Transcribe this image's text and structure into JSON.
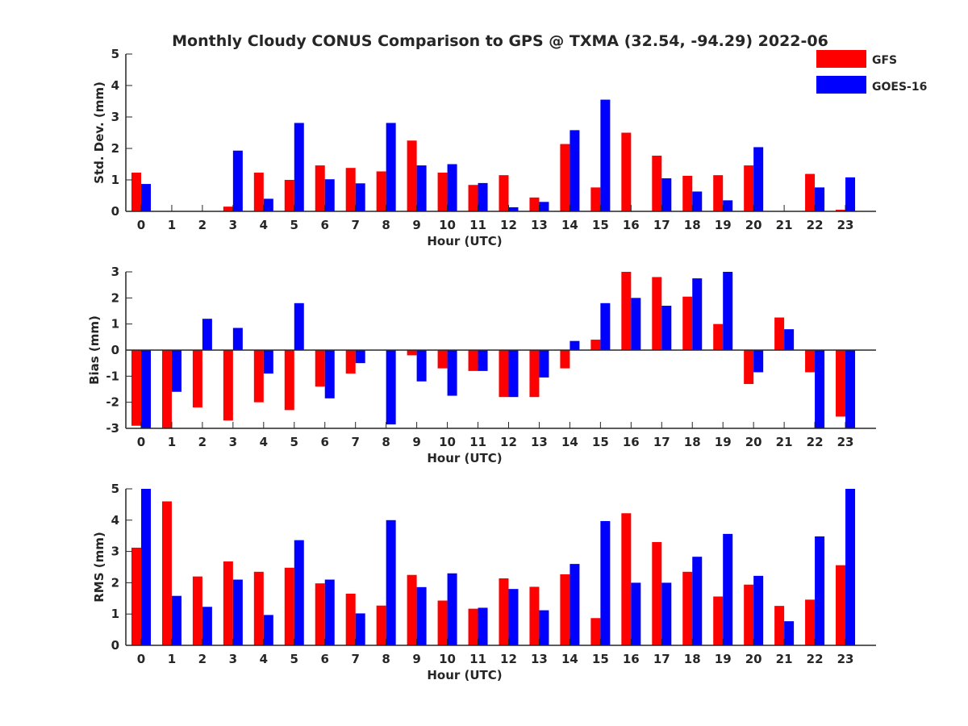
{
  "title": "Monthly Cloudy CONUS Comparison to GPS @ TXMA (32.54, -94.29) 2022-06",
  "legend": {
    "location": "top-right",
    "entries": [
      {
        "name": "GFS",
        "color": "#ff0000"
      },
      {
        "name": "GOES-16",
        "color": "#0000ff"
      }
    ]
  },
  "chart_data": [
    {
      "type": "bar",
      "xlabel": "Hour (UTC)",
      "ylabel": "Std. Dev. (mm)",
      "ylim": [
        0,
        5
      ],
      "yticks": [
        0,
        1,
        2,
        3,
        4,
        5
      ],
      "categories": [
        "0",
        "1",
        "2",
        "3",
        "4",
        "5",
        "6",
        "7",
        "8",
        "9",
        "10",
        "11",
        "12",
        "13",
        "14",
        "15",
        "16",
        "17",
        "18",
        "19",
        "20",
        "21",
        "22",
        "23"
      ],
      "series": [
        {
          "name": "GFS",
          "color": "#ff0000",
          "values": [
            1.23,
            0,
            0,
            0.15,
            1.23,
            1.0,
            1.46,
            1.38,
            1.27,
            2.25,
            1.23,
            0.84,
            1.15,
            0.44,
            2.14,
            0.76,
            2.5,
            1.77,
            1.13,
            1.15,
            1.46,
            0,
            1.19,
            0.05
          ]
        },
        {
          "name": "GOES-16",
          "color": "#0000ff",
          "values": [
            0.87,
            0,
            0,
            1.93,
            0.4,
            2.81,
            1.02,
            0.89,
            2.81,
            1.46,
            1.5,
            0.9,
            0.13,
            0.3,
            2.58,
            3.55,
            0,
            1.05,
            0.63,
            0.35,
            2.04,
            0,
            0.76,
            1.08
          ]
        }
      ]
    },
    {
      "type": "bar",
      "xlabel": "Hour (UTC)",
      "ylabel": "Bias (mm)",
      "ylim": [
        -3,
        3
      ],
      "yticks": [
        -3,
        -2,
        -1,
        0,
        1,
        2,
        3
      ],
      "categories": [
        "0",
        "1",
        "2",
        "3",
        "4",
        "5",
        "6",
        "7",
        "8",
        "9",
        "10",
        "11",
        "12",
        "13",
        "14",
        "15",
        "16",
        "17",
        "18",
        "19",
        "20",
        "21",
        "22",
        "23"
      ],
      "series": [
        {
          "name": "GFS",
          "color": "#ff0000",
          "values": [
            -2.9,
            -3.0,
            -2.2,
            -2.7,
            -2.0,
            -2.3,
            -1.4,
            -0.9,
            0,
            -0.2,
            -0.7,
            -0.8,
            -1.8,
            -1.8,
            -0.7,
            0.4,
            3.0,
            2.8,
            2.05,
            1.0,
            -1.3,
            1.25,
            -0.85,
            -2.55
          ]
        },
        {
          "name": "GOES-16",
          "color": "#0000ff",
          "values": [
            -3.0,
            -1.6,
            1.2,
            0.85,
            -0.9,
            1.8,
            -1.85,
            -0.5,
            -2.85,
            -1.2,
            -1.75,
            -0.8,
            -1.8,
            -1.05,
            0.35,
            1.8,
            2.0,
            1.7,
            2.75,
            3.0,
            -0.85,
            0.8,
            -3.0,
            -3.0
          ]
        }
      ]
    },
    {
      "type": "bar",
      "xlabel": "Hour (UTC)",
      "ylabel": "RMS (mm)",
      "ylim": [
        0,
        5
      ],
      "yticks": [
        0,
        1,
        2,
        3,
        4,
        5
      ],
      "categories": [
        "0",
        "1",
        "2",
        "3",
        "4",
        "5",
        "6",
        "7",
        "8",
        "9",
        "10",
        "11",
        "12",
        "13",
        "14",
        "15",
        "16",
        "17",
        "18",
        "19",
        "20",
        "21",
        "22",
        "23"
      ],
      "series": [
        {
          "name": "GFS",
          "color": "#ff0000",
          "values": [
            3.12,
            4.6,
            2.2,
            2.68,
            2.35,
            2.48,
            1.98,
            1.65,
            1.27,
            2.25,
            1.43,
            1.17,
            2.14,
            1.87,
            2.27,
            0.87,
            4.22,
            3.3,
            2.35,
            1.56,
            1.94,
            1.26,
            1.46,
            2.56
          ]
        },
        {
          "name": "GOES-16",
          "color": "#0000ff",
          "values": [
            5.0,
            1.58,
            1.23,
            2.1,
            0.97,
            3.36,
            2.1,
            1.02,
            4.0,
            1.86,
            2.3,
            1.2,
            1.8,
            1.12,
            2.6,
            3.97,
            2.0,
            2.0,
            2.83,
            3.56,
            2.22,
            0.77,
            3.48,
            5.0
          ]
        }
      ]
    }
  ]
}
